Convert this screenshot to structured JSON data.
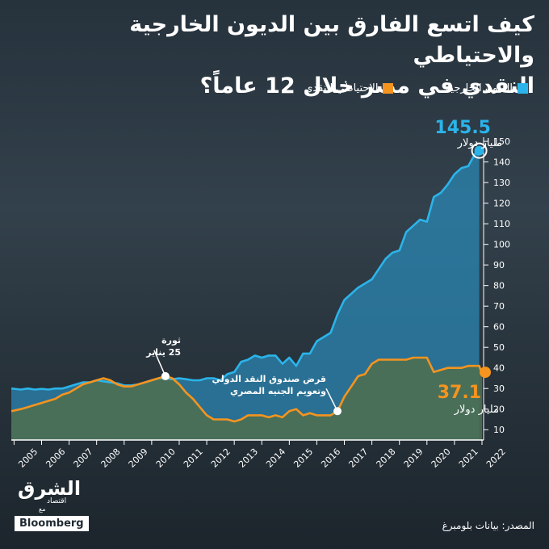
{
  "title_line1": "كيف اتسع الفارق بين الديون الخارجية والاحتياطي",
  "title_line2": "النقدي في مصر خلال 12 عاماً؟",
  "source": "المصدر: بيانات بلومبرغ",
  "logo": {
    "arabic": "الشرق",
    "sub": "اقتصاد",
    "with": "مع",
    "bloomberg": "Bloomberg"
  },
  "annotations": {
    "debt_value": "145.5",
    "debt_unit": "مليار دولار",
    "reserves_value": "37.1",
    "reserves_unit": "مليار دولار",
    "revolution": [
      "ثورة",
      "25 يناير"
    ],
    "imf": [
      "قرض صندوق النقد الدولي",
      "وتعويم الجنيه المصري"
    ]
  },
  "colors": {
    "debt": "#2bb4ea",
    "reserves": "#f5941f",
    "debt_fill": "#2b86b3",
    "reserves_fill": "#4d6f52"
  },
  "chart_data": {
    "type": "area",
    "title": "كيف اتسع الفارق بين الديون الخارجية والاحتياطي النقدي في مصر خلال 12 عاماً؟",
    "xlabel": "",
    "ylabel": "",
    "x_ticks": [
      "2005",
      "2006",
      "2007",
      "2008",
      "2009",
      "2010",
      "2011",
      "2012",
      "2013",
      "2014",
      "2015",
      "2016",
      "2017",
      "2018",
      "2019",
      "2020",
      "2021",
      "2022"
    ],
    "y_ticks": [
      10,
      20,
      30,
      40,
      50,
      60,
      70,
      80,
      90,
      100,
      110,
      120,
      130,
      140,
      150
    ],
    "xlim": [
      2004.9,
      2022.0
    ],
    "ylim": [
      5,
      152
    ],
    "legend": "top",
    "grid": false,
    "series": [
      {
        "name": "الديون الخارجية",
        "points": [
          [
            2004.9,
            30
          ],
          [
            2005.25,
            29.5
          ],
          [
            2005.5,
            30
          ],
          [
            2005.75,
            29.5
          ],
          [
            2006.0,
            29.8
          ],
          [
            2006.25,
            29.5
          ],
          [
            2006.5,
            30
          ],
          [
            2006.75,
            30
          ],
          [
            2007.0,
            31
          ],
          [
            2007.25,
            32
          ],
          [
            2007.5,
            33
          ],
          [
            2007.75,
            33
          ],
          [
            2008.0,
            34
          ],
          [
            2008.25,
            33.5
          ],
          [
            2008.5,
            33
          ],
          [
            2008.75,
            32.5
          ],
          [
            2009.0,
            31.5
          ],
          [
            2009.25,
            31.5
          ],
          [
            2009.5,
            32
          ],
          [
            2009.75,
            33
          ],
          [
            2010.0,
            34
          ],
          [
            2010.25,
            35
          ],
          [
            2010.5,
            35
          ],
          [
            2010.75,
            34.5
          ],
          [
            2011.0,
            35
          ],
          [
            2011.25,
            34.5
          ],
          [
            2011.5,
            34
          ],
          [
            2011.75,
            34
          ],
          [
            2012.0,
            35
          ],
          [
            2012.25,
            35
          ],
          [
            2012.5,
            34
          ],
          [
            2012.75,
            37
          ],
          [
            2013.0,
            38
          ],
          [
            2013.25,
            43
          ],
          [
            2013.5,
            44
          ],
          [
            2013.75,
            46
          ],
          [
            2014.0,
            45
          ],
          [
            2014.25,
            46
          ],
          [
            2014.5,
            46
          ],
          [
            2014.75,
            42
          ],
          [
            2015.0,
            45
          ],
          [
            2015.25,
            41
          ],
          [
            2015.5,
            47
          ],
          [
            2015.75,
            47
          ],
          [
            2016.0,
            53
          ],
          [
            2016.25,
            55
          ],
          [
            2016.5,
            57
          ],
          [
            2016.75,
            66
          ],
          [
            2017.0,
            73
          ],
          [
            2017.25,
            76
          ],
          [
            2017.5,
            79
          ],
          [
            2017.75,
            81
          ],
          [
            2018.0,
            83
          ],
          [
            2018.25,
            88
          ],
          [
            2018.5,
            93
          ],
          [
            2018.75,
            96
          ],
          [
            2019.0,
            97
          ],
          [
            2019.25,
            106
          ],
          [
            2019.5,
            109
          ],
          [
            2019.75,
            112
          ],
          [
            2020.0,
            111
          ],
          [
            2020.25,
            123
          ],
          [
            2020.5,
            125
          ],
          [
            2020.75,
            129
          ],
          [
            2021.0,
            134
          ],
          [
            2021.25,
            137
          ],
          [
            2021.5,
            138
          ],
          [
            2021.75,
            144
          ],
          [
            2021.9,
            145.5
          ]
        ]
      },
      {
        "name": "الاحتياطي النقدي",
        "points": [
          [
            2004.9,
            19
          ],
          [
            2005.25,
            20
          ],
          [
            2005.5,
            21
          ],
          [
            2005.75,
            22
          ],
          [
            2006.0,
            23
          ],
          [
            2006.25,
            24
          ],
          [
            2006.5,
            25
          ],
          [
            2006.75,
            27
          ],
          [
            2007.0,
            28
          ],
          [
            2007.25,
            30
          ],
          [
            2007.5,
            32
          ],
          [
            2007.75,
            33
          ],
          [
            2008.0,
            34
          ],
          [
            2008.25,
            35
          ],
          [
            2008.5,
            34
          ],
          [
            2008.75,
            32
          ],
          [
            2009.0,
            31
          ],
          [
            2009.25,
            31
          ],
          [
            2009.5,
            32
          ],
          [
            2009.75,
            33
          ],
          [
            2010.0,
            34
          ],
          [
            2010.25,
            35
          ],
          [
            2010.5,
            36
          ],
          [
            2010.75,
            35
          ],
          [
            2011.0,
            32
          ],
          [
            2011.25,
            28
          ],
          [
            2011.5,
            25
          ],
          [
            2011.75,
            21
          ],
          [
            2012.0,
            17
          ],
          [
            2012.25,
            15
          ],
          [
            2012.5,
            15
          ],
          [
            2012.75,
            15
          ],
          [
            2013.0,
            14
          ],
          [
            2013.25,
            15
          ],
          [
            2013.5,
            17
          ],
          [
            2013.75,
            17
          ],
          [
            2014.0,
            17
          ],
          [
            2014.25,
            16
          ],
          [
            2014.5,
            17
          ],
          [
            2014.75,
            16
          ],
          [
            2015.0,
            19
          ],
          [
            2015.25,
            20
          ],
          [
            2015.5,
            17
          ],
          [
            2015.75,
            18
          ],
          [
            2016.0,
            17
          ],
          [
            2016.25,
            17
          ],
          [
            2016.5,
            17
          ],
          [
            2016.75,
            19
          ],
          [
            2017.0,
            26
          ],
          [
            2017.25,
            31
          ],
          [
            2017.5,
            36
          ],
          [
            2017.75,
            37
          ],
          [
            2018.0,
            42
          ],
          [
            2018.25,
            44
          ],
          [
            2018.5,
            44
          ],
          [
            2018.75,
            44
          ],
          [
            2019.0,
            44
          ],
          [
            2019.25,
            44
          ],
          [
            2019.5,
            45
          ],
          [
            2019.75,
            45
          ],
          [
            2020.0,
            45
          ],
          [
            2020.25,
            38
          ],
          [
            2020.5,
            39
          ],
          [
            2020.75,
            40
          ],
          [
            2021.0,
            40
          ],
          [
            2021.25,
            40
          ],
          [
            2021.5,
            41
          ],
          [
            2021.75,
            41
          ],
          [
            2021.9,
            41
          ],
          [
            2022.0,
            37.1
          ]
        ]
      }
    ]
  }
}
